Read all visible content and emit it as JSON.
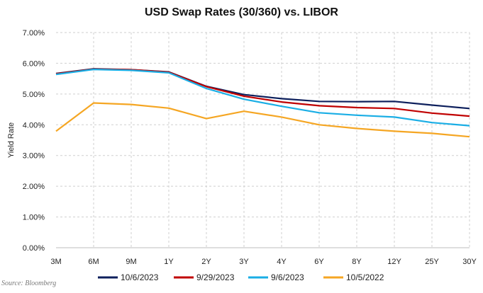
{
  "chart_data": {
    "type": "line",
    "title": "USD Swap Rates (30/360) vs. LIBOR",
    "xlabel": "",
    "ylabel": "Yield Rate",
    "categories": [
      "3M",
      "6M",
      "9M",
      "1Y",
      "2Y",
      "3Y",
      "4Y",
      "6Y",
      "8Y",
      "12Y",
      "25Y",
      "30Y"
    ],
    "ylim": [
      0,
      7
    ],
    "y_ticks": [
      0,
      1,
      2,
      3,
      4,
      5,
      6,
      7
    ],
    "y_tick_labels": [
      "0.00%",
      "1.00%",
      "2.00%",
      "3.00%",
      "4.00%",
      "5.00%",
      "6.00%",
      "7.00%"
    ],
    "grid": true,
    "grid_style": "dashed vertical and horizontal",
    "legend_position": "bottom",
    "series": [
      {
        "name": "10/6/2023",
        "color": "#0d1f5c",
        "values": [
          5.67,
          5.82,
          5.79,
          5.72,
          5.25,
          4.98,
          4.85,
          4.76,
          4.75,
          4.76,
          4.64,
          4.53
        ]
      },
      {
        "name": "9/29/2023",
        "color": "#c00000",
        "values": [
          5.66,
          5.81,
          5.79,
          5.71,
          5.24,
          4.93,
          4.74,
          4.62,
          4.56,
          4.53,
          4.38,
          4.28
        ]
      },
      {
        "name": "9/6/2023",
        "color": "#1aaee5",
        "values": [
          5.64,
          5.8,
          5.77,
          5.69,
          5.18,
          4.83,
          4.6,
          4.39,
          4.31,
          4.25,
          4.07,
          3.97
        ]
      },
      {
        "name": "10/5/2022",
        "color": "#f5a623",
        "values": [
          3.79,
          4.71,
          4.66,
          4.54,
          4.2,
          4.44,
          4.25,
          4.0,
          3.88,
          3.79,
          3.72,
          3.61
        ]
      }
    ],
    "source": "Source: Bloomberg"
  }
}
